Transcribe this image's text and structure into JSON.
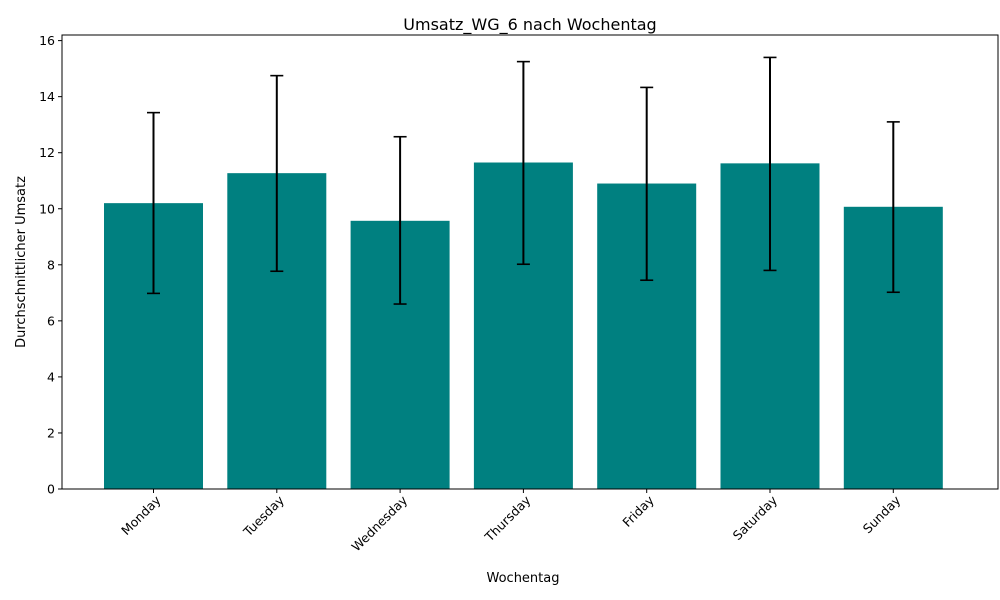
{
  "chart_data": {
    "type": "bar",
    "title": "Umsatz_WG_6 nach Wochentag",
    "xlabel": "Wochentag",
    "ylabel": "Durchschnittlicher Umsatz",
    "categories": [
      "Monday",
      "Tuesday",
      "Wednesday",
      "Thursday",
      "Friday",
      "Saturday",
      "Sunday"
    ],
    "values": [
      10.2,
      11.27,
      9.57,
      11.65,
      10.9,
      11.62,
      10.07
    ],
    "error_low": [
      6.98,
      7.77,
      6.6,
      8.02,
      7.45,
      7.8,
      7.02
    ],
    "error_high": [
      13.43,
      14.75,
      12.57,
      15.25,
      14.33,
      15.4,
      13.1
    ],
    "yticks": [
      "0",
      "2",
      "4",
      "6",
      "8",
      "10",
      "12",
      "14",
      "16"
    ],
    "ylim": [
      0,
      16.2
    ],
    "bar_color": "#008080",
    "error_color": "#000000",
    "grid": false,
    "legend": "none"
  }
}
